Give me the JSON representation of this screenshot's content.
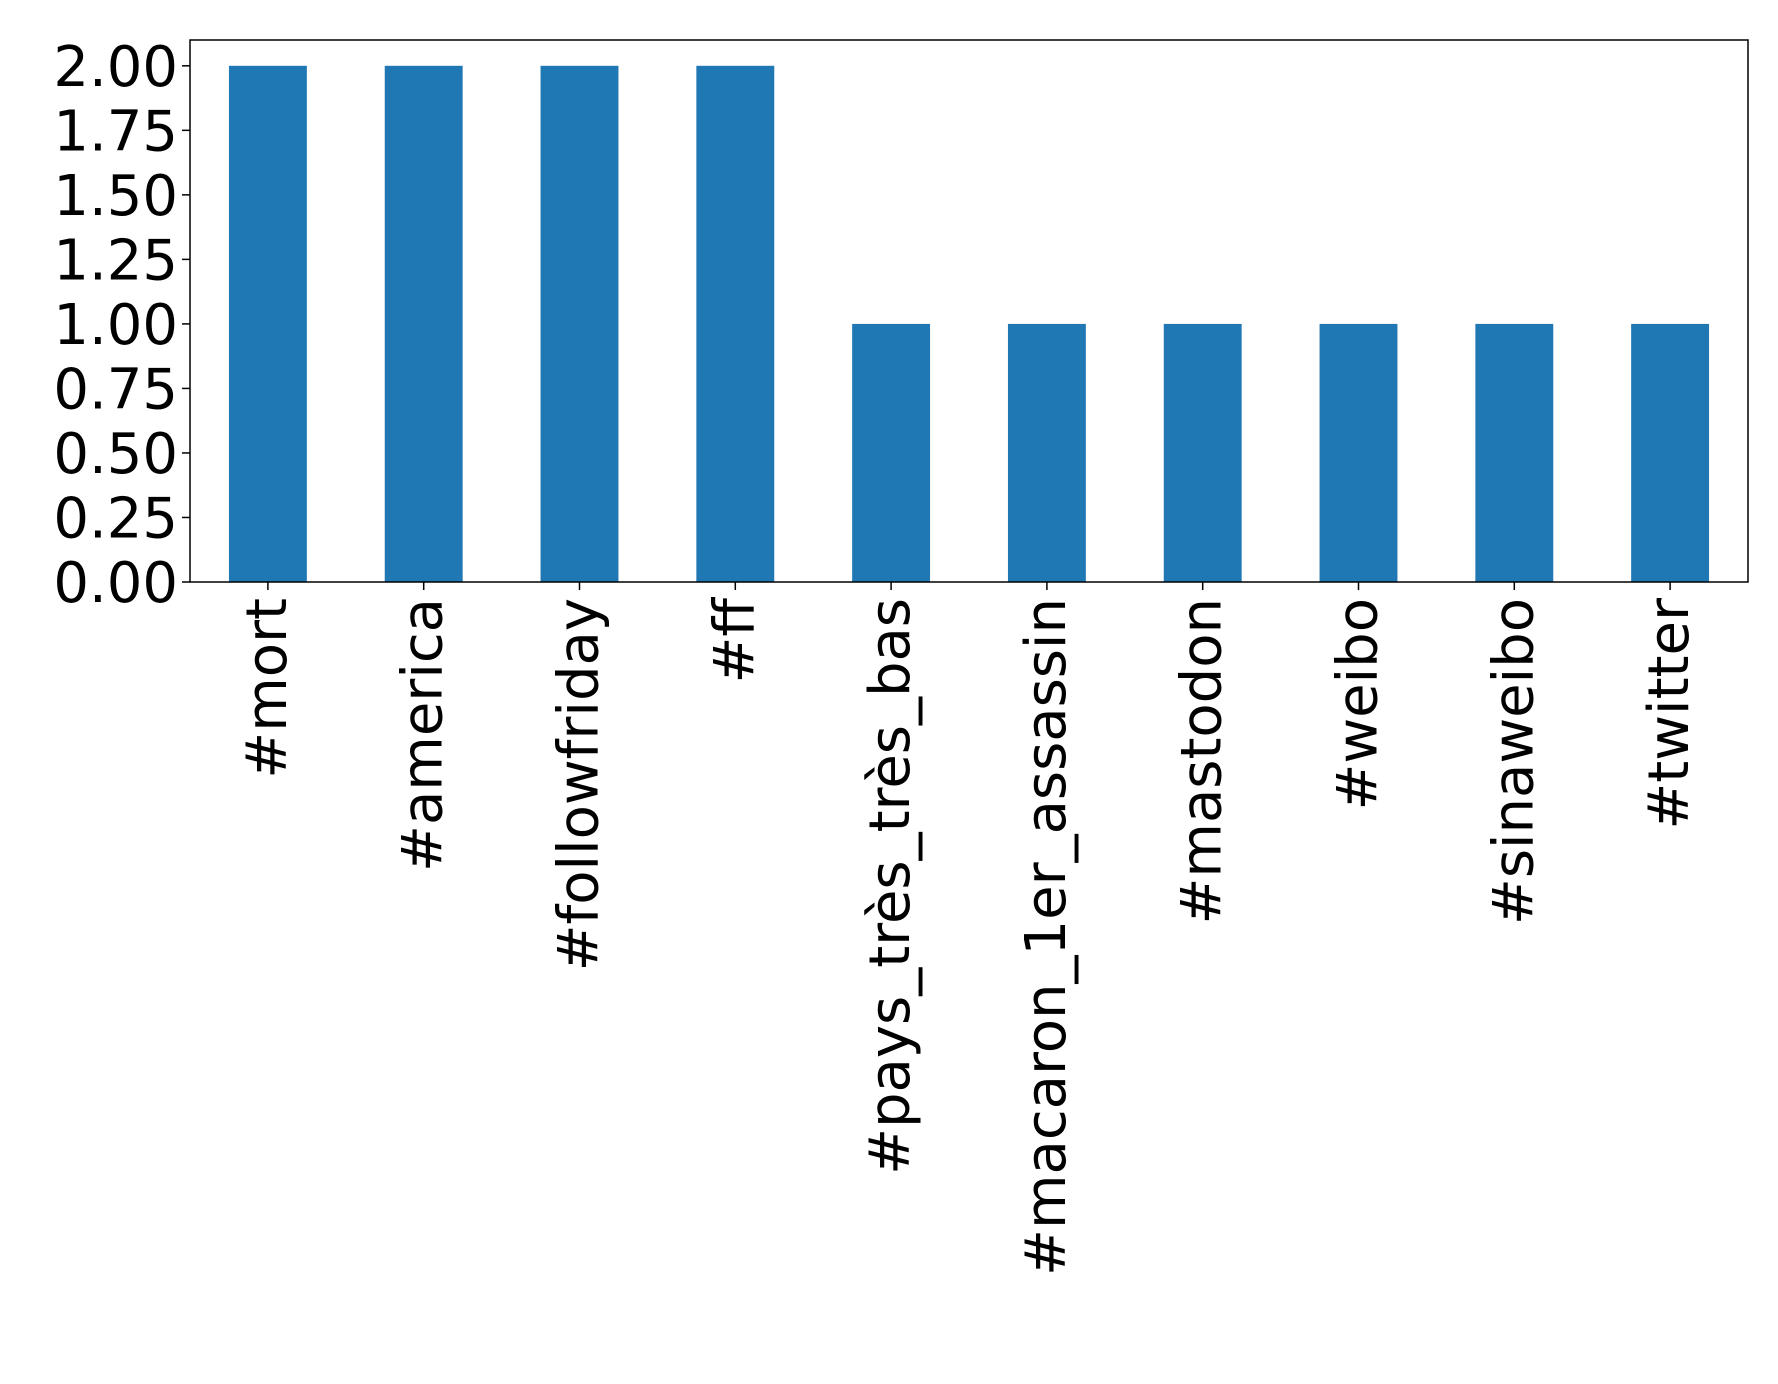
{
  "chart_data": {
    "type": "bar",
    "title": "",
    "xlabel": "",
    "ylabel": "",
    "categories": [
      "#mort",
      "#america",
      "#followfriday",
      "#ff",
      "#pays_très_très_bas",
      "#macaron_1er_assassin",
      "#mastodon",
      "#weibo",
      "#sinaweibo",
      "#twitter"
    ],
    "values": [
      2,
      2,
      2,
      2,
      1,
      1,
      1,
      1,
      1,
      1
    ],
    "ylim": [
      0,
      2.1
    ],
    "yticks": [
      "0.00",
      "0.25",
      "0.50",
      "0.75",
      "1.00",
      "1.25",
      "1.50",
      "1.75",
      "2.00"
    ],
    "grid": false,
    "legend": "none",
    "bar_color": "#1f77b4"
  }
}
